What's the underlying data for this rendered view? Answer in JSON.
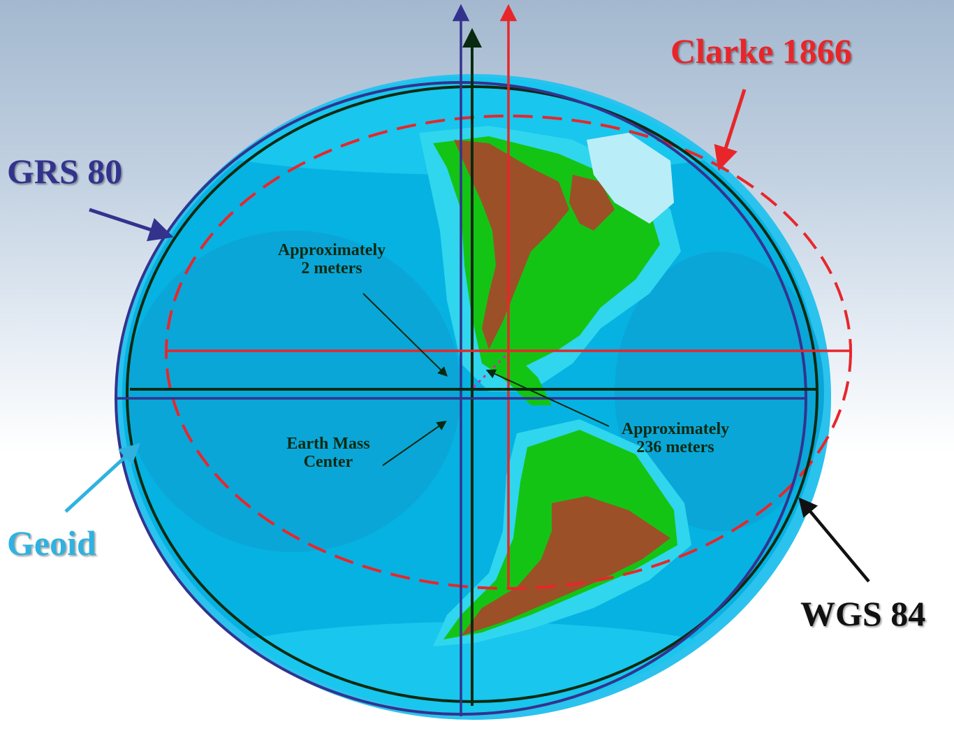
{
  "labels": {
    "clarke": "Clarke 1866",
    "grs": "GRS 80",
    "geoid": "Geoid",
    "wgs": "WGS 84",
    "approx_2m_line1": "Approximately",
    "approx_2m_line2": "2 meters",
    "approx_236m_line1": "Approximately",
    "approx_236m_line2": "236 meters",
    "emc_line1": "Earth Mass",
    "emc_line2": "Center"
  },
  "colors": {
    "clarke": "#e8262a",
    "grs": "#33338e",
    "geoid": "#2fb2df",
    "wgs": "#0a2a10",
    "ocean": "#06b2e2",
    "land_green": "#14c414",
    "land_brown": "#9c5028"
  }
}
